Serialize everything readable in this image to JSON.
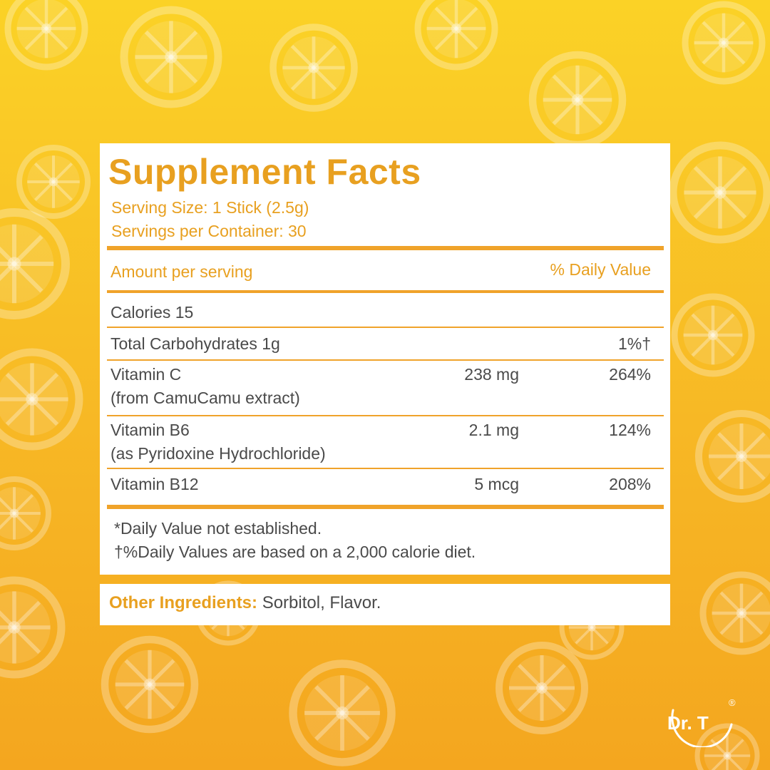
{
  "colors": {
    "background_top": "#fbd226",
    "background_bottom": "#f4a61f",
    "accent": "#e8a020",
    "text": "#4a4a4a",
    "card": "#ffffff"
  },
  "facts": {
    "title": "Supplement Facts",
    "serving_size": "Serving Size: 1 Stick (2.5g)",
    "servings_per_container": "Servings per Container: 30",
    "amount_header": "Amount per serving",
    "dv_header": "% Daily Value",
    "rows": [
      {
        "name": "Calories 15",
        "sub": "",
        "amount": "",
        "dv": ""
      },
      {
        "name": "Total Carbohydrates 1g",
        "sub": "",
        "amount": "",
        "dv": "1%†"
      },
      {
        "name": "Vitamin C",
        "sub": "(from CamuCamu extract)",
        "amount": "238 mg",
        "dv": "264%"
      },
      {
        "name": "Vitamin B6",
        "sub": "(as Pyridoxine Hydrochloride)",
        "amount": "2.1 mg",
        "dv": "124%"
      },
      {
        "name": "Vitamin B12",
        "sub": "",
        "amount": "5 mcg",
        "dv": "208%"
      }
    ],
    "footnotes": [
      "*Daily Value not established.",
      "†%Daily Values are based on a 2,000 calorie diet."
    ]
  },
  "ingredients": {
    "label": "Other Ingredients:",
    "value": " Sorbitol, Flavor."
  },
  "logo": {
    "text": "Dr. T",
    "mark": "®"
  },
  "icons": {
    "background": "lemon-slice-pattern"
  }
}
